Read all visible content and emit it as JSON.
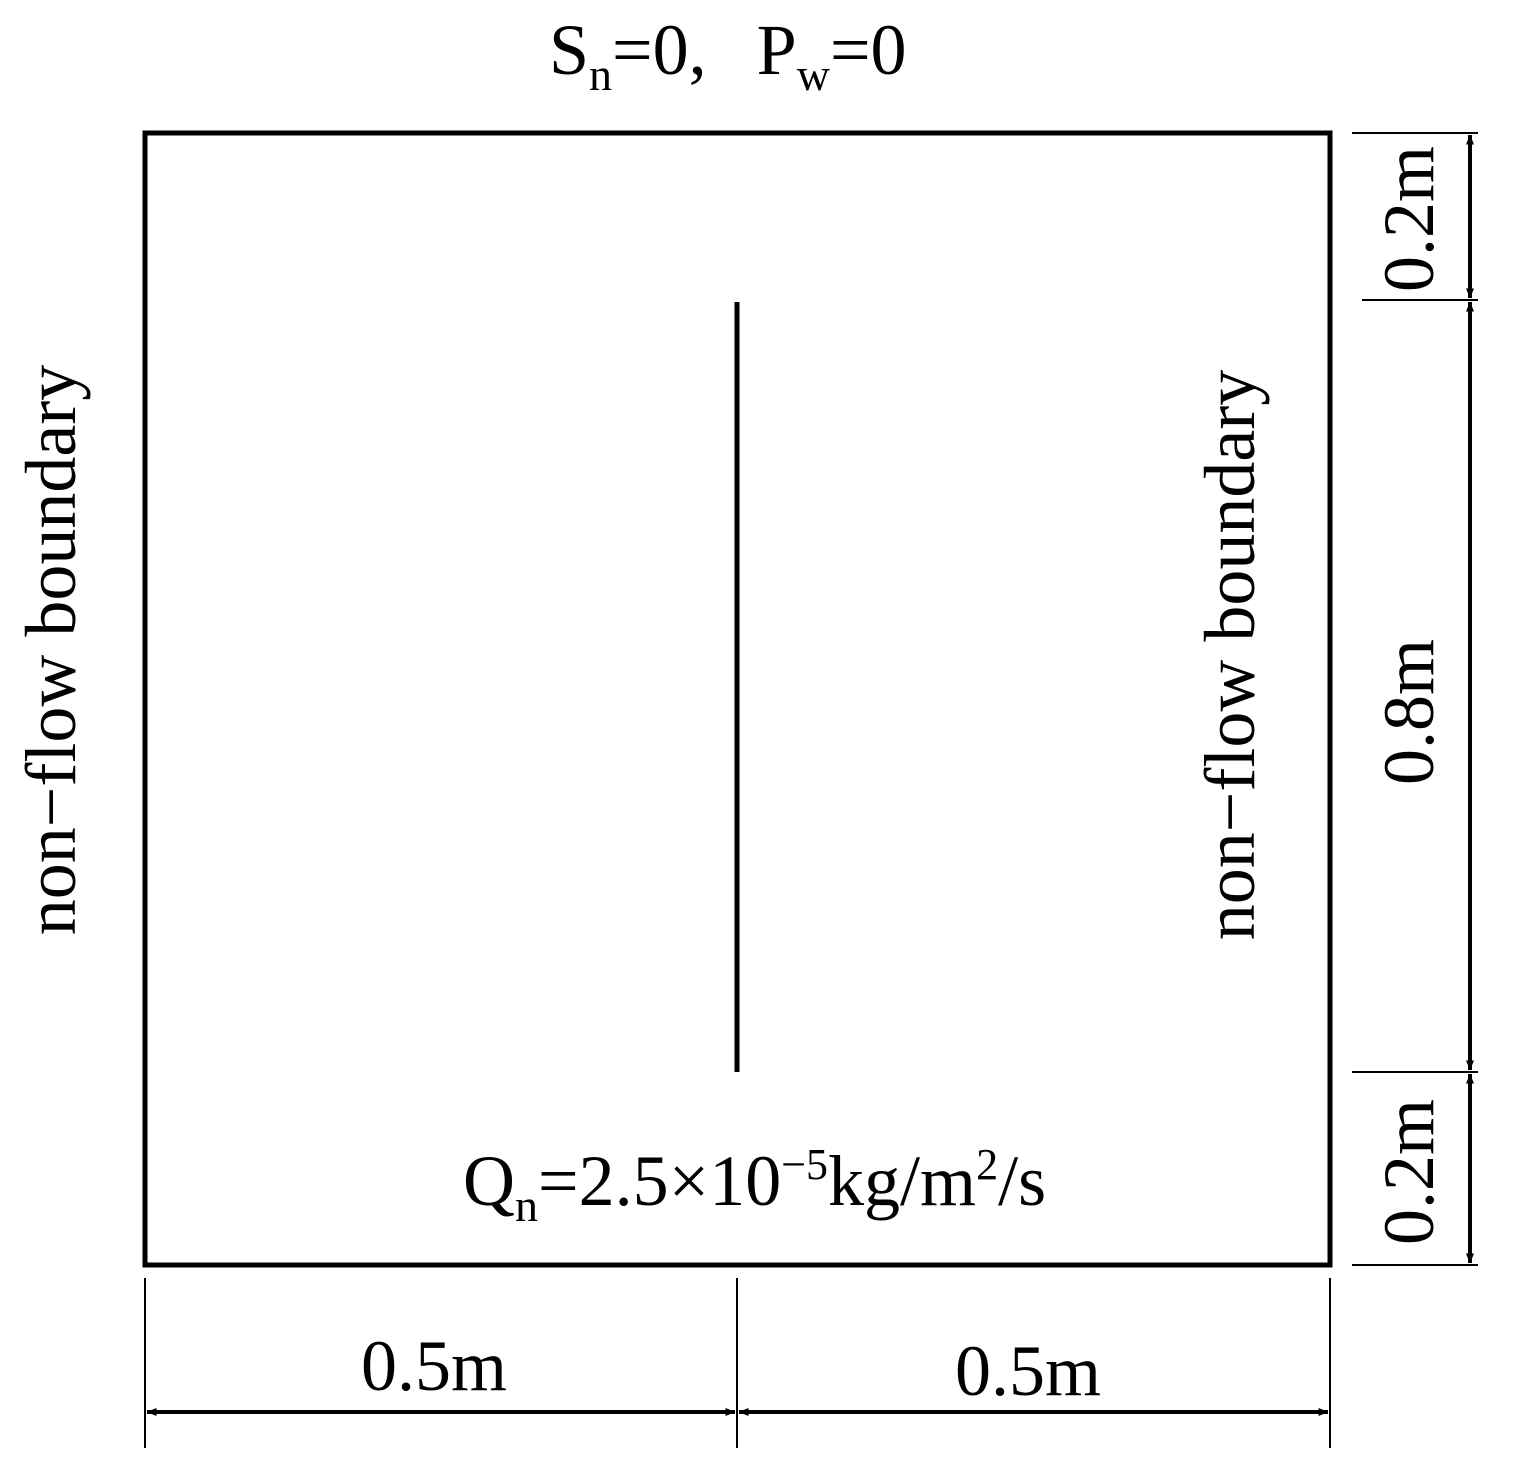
{
  "top_condition": {
    "s_symbol": "S",
    "s_sub": "n",
    "s_rest": "=0,",
    "p_symbol": "P",
    "p_sub": "w",
    "p_rest": "=0"
  },
  "left_boundary_label": "non−flow boundary",
  "right_boundary_label": "non−flow boundary",
  "bottom_condition": {
    "symbol": "Q",
    "sub": "n",
    "mid": "=2.5×10",
    "exponent": "−5",
    "units": "kg/m",
    "units_exponent": "2",
    "tail": "/s"
  },
  "dimensions": {
    "bottom_left": "0.5m",
    "bottom_right": "0.5m",
    "right_top": "0.2m",
    "right_middle": "0.8m",
    "right_bottom": "0.2m"
  },
  "colors": {
    "line": "#000000",
    "background": "#ffffff"
  }
}
